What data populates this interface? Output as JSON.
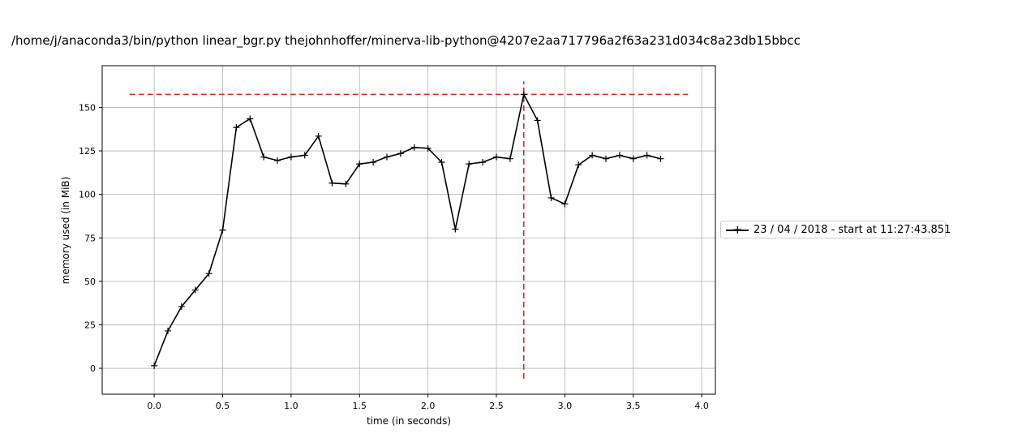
{
  "title": "/home/j/anaconda3/bin/python linear_bgr.py thejohnhoffer/minerva-lib-python@4207e2aa717796a2f63a231d034c8a23db15bbcc",
  "chart_data": {
    "type": "line",
    "xlabel": "time (in seconds)",
    "ylabel": "memory used (in MiB)",
    "xlim": [
      -0.38,
      4.1
    ],
    "ylim": [
      -14.9,
      174.0
    ],
    "xticks": [
      0.0,
      0.5,
      1.0,
      1.5,
      2.0,
      2.5,
      3.0,
      3.5,
      4.0
    ],
    "xtick_labels": [
      "0.0",
      "0.5",
      "1.0",
      "1.5",
      "2.0",
      "2.5",
      "3.0",
      "3.5",
      "4.0"
    ],
    "yticks": [
      0,
      25,
      50,
      75,
      100,
      125,
      150
    ],
    "ytick_labels": [
      "0",
      "25",
      "50",
      "75",
      "100",
      "125",
      "150"
    ],
    "grid": true,
    "legend_position": "right",
    "series": [
      {
        "name": "23 / 04 / 2018 - start at 11:27:43.851",
        "color": "#000000",
        "marker": "+",
        "x": [
          0.0,
          0.1,
          0.2,
          0.3,
          0.4,
          0.5,
          0.6,
          0.7,
          0.8,
          0.9,
          1.0,
          1.1,
          1.2,
          1.3,
          1.4,
          1.5,
          1.6,
          1.7,
          1.8,
          1.9,
          2.0,
          2.1,
          2.2,
          2.3,
          2.4,
          2.5,
          2.6,
          2.7,
          2.8,
          2.9,
          3.0,
          3.1,
          3.2,
          3.3,
          3.4,
          3.5,
          3.6,
          3.7
        ],
        "y": [
          1.5,
          21.5,
          35.5,
          45.0,
          54.5,
          79.5,
          138.5,
          143.5,
          121.5,
          119.5,
          121.5,
          122.5,
          133.5,
          106.5,
          106.0,
          117.5,
          118.5,
          121.5,
          123.5,
          127.0,
          126.5,
          118.5,
          80.0,
          117.5,
          118.5,
          121.5,
          120.5,
          157.5,
          142.5,
          98.0,
          94.5,
          117.0,
          122.5,
          120.5,
          122.5,
          120.5,
          122.5,
          120.5
        ]
      }
    ],
    "annotations": [
      {
        "type": "hline",
        "y": 157.5,
        "x_from": -0.18,
        "x_to": 3.9,
        "color": "#d62728",
        "style": "dashed"
      },
      {
        "type": "vline",
        "x": 2.7,
        "y_from": -6.0,
        "y_to": 165.0,
        "color": "#d62728",
        "style": "dashed"
      }
    ]
  }
}
